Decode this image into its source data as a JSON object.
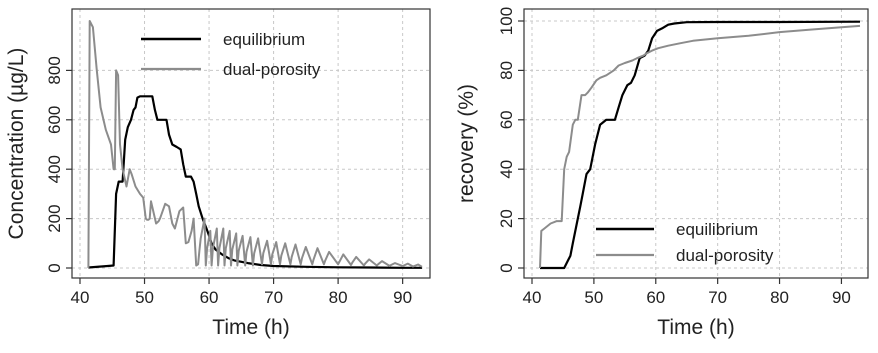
{
  "chart_data": [
    {
      "type": "line",
      "xlabel": "Time (h)",
      "ylabel": "Concentration (µg/L)",
      "xlim": [
        40,
        93
      ],
      "ylim": [
        0,
        1000
      ],
      "xticks": [
        40,
        50,
        60,
        70,
        80,
        90
      ],
      "yticks": [
        0,
        200,
        400,
        600,
        800
      ],
      "grid": true,
      "legend": "top-right",
      "series": [
        {
          "name": "equilibrium",
          "color": "#000000",
          "x": [
            41.3,
            44.3,
            45.2,
            45.6,
            46.0,
            46.6,
            47.0,
            47.4,
            47.9,
            48.3,
            48.6,
            48.9,
            49.3,
            51.2,
            51.6,
            52.0,
            52.8,
            53.4,
            53.8,
            54.3,
            55.0,
            55.6,
            56.0,
            56.4,
            57.2,
            57.6,
            58.0,
            58.4,
            59.0,
            59.6,
            60.0,
            60.4,
            61.0,
            62.0,
            63.0,
            64.0,
            66.0,
            68.0,
            70.0,
            75.0,
            80.0,
            85.0,
            90.0,
            93.0
          ],
          "y": [
            2,
            8,
            10,
            300,
            350,
            350,
            520,
            570,
            600,
            640,
            650,
            690,
            695,
            695,
            640,
            600,
            600,
            600,
            540,
            500,
            490,
            480,
            420,
            370,
            370,
            350,
            300,
            250,
            200,
            160,
            130,
            100,
            75,
            55,
            40,
            30,
            20,
            12,
            8,
            5,
            3,
            2,
            1,
            1
          ]
        },
        {
          "name": "dual-porosity",
          "color": "#8c8c8c",
          "x": [
            41.3,
            41.5,
            42.0,
            42.6,
            43.2,
            44.0,
            44.8,
            45.2,
            45.4,
            45.6,
            45.9,
            46.2,
            46.6,
            47.2,
            47.7,
            48.0,
            48.6,
            49.3,
            49.8,
            50.2,
            50.4,
            50.6,
            50.8,
            51.0,
            51.8,
            52.2,
            52.4,
            53.2,
            53.8,
            54.3,
            54.5,
            54.7,
            55.4,
            56.0,
            56.4,
            56.8,
            57.3,
            57.6,
            58.0,
            58.3,
            58.5,
            58.7,
            59.3,
            59.5,
            59.7,
            60.2,
            60.4,
            60.6,
            61.2,
            61.4,
            61.6,
            62.2,
            62.4,
            62.6,
            63.2,
            63.4,
            63.6,
            64.2,
            64.4,
            64.6,
            65.2,
            65.6,
            65.8,
            66.4,
            66.8,
            67.0,
            67.6,
            68.2,
            68.4,
            69.0,
            69.6,
            69.8,
            70.4,
            71.0,
            71.2,
            71.8,
            72.6,
            72.8,
            73.4,
            74.2,
            74.4,
            75.0,
            76.0,
            76.2,
            76.8,
            77.8,
            78.0,
            78.6,
            80.0,
            80.2,
            80.8,
            82.0,
            82.2,
            82.8,
            84.0,
            84.2,
            84.8,
            86.0,
            86.2,
            86.8,
            88.0,
            88.2,
            88.8,
            90.0,
            90.2,
            90.8,
            91.6,
            91.8,
            92.4,
            93.0
          ],
          "y": [
            0,
            1000,
            975,
            800,
            650,
            560,
            500,
            400,
            400,
            800,
            780,
            500,
            400,
            330,
            400,
            380,
            330,
            300,
            285,
            200,
            195,
            195,
            200,
            270,
            180,
            190,
            200,
            260,
            250,
            180,
            170,
            160,
            230,
            245,
            100,
            105,
            150,
            200,
            10,
            15,
            70,
            120,
            200,
            10,
            80,
            150,
            10,
            80,
            160,
            10,
            80,
            160,
            10,
            80,
            150,
            10,
            75,
            140,
            10,
            70,
            130,
            10,
            65,
            125,
            10,
            60,
            120,
            15,
            60,
            110,
            15,
            55,
            105,
            15,
            50,
            100,
            15,
            45,
            95,
            15,
            40,
            85,
            15,
            35,
            80,
            15,
            30,
            65,
            15,
            25,
            55,
            12,
            22,
            45,
            10,
            18,
            35,
            10,
            15,
            28,
            8,
            12,
            20,
            8,
            10,
            18,
            6,
            8,
            14,
            5
          ]
        }
      ]
    },
    {
      "type": "line",
      "xlabel": "Time (h)",
      "ylabel": "recovery (%)",
      "xlim": [
        40,
        93
      ],
      "ylim": [
        0,
        100
      ],
      "xticks": [
        40,
        50,
        60,
        70,
        80,
        90
      ],
      "yticks": [
        0,
        20,
        40,
        60,
        80,
        100
      ],
      "grid": true,
      "legend": "bottom-right",
      "series": [
        {
          "name": "equilibrium",
          "color": "#000000",
          "x": [
            41.3,
            45.2,
            45.8,
            46.2,
            46.6,
            47.4,
            47.8,
            48.2,
            48.8,
            49.4,
            50.2,
            51.0,
            52.0,
            53.4,
            54.0,
            54.6,
            55.4,
            56.0,
            56.6,
            57.4,
            58.2,
            58.8,
            59.4,
            60.2,
            61.0,
            62.0,
            63.0,
            65.0,
            70.0,
            80.0,
            93.0
          ],
          "y": [
            0,
            0,
            3,
            5,
            10,
            20,
            25,
            30,
            38,
            40,
            50,
            58,
            60,
            60,
            65,
            70,
            74,
            75,
            78,
            85,
            86,
            88,
            93,
            96,
            97,
            98.5,
            99,
            99.5,
            99.6,
            99.6,
            99.7
          ]
        },
        {
          "name": "dual-porosity",
          "color": "#8c8c8c",
          "x": [
            41.3,
            41.5,
            42.0,
            43.0,
            44.0,
            44.8,
            45.2,
            45.6,
            46.0,
            46.6,
            47.0,
            47.4,
            48.0,
            48.6,
            49.0,
            49.6,
            50.4,
            51.0,
            52.0,
            53.2,
            54.0,
            55.0,
            56.2,
            57.0,
            58.0,
            58.6,
            59.4,
            60.4,
            62.0,
            64.0,
            66.0,
            70.0,
            75.0,
            80.0,
            85.0,
            90.0,
            93.0
          ],
          "y": [
            0,
            15,
            16,
            18,
            19,
            19,
            40,
            45,
            47,
            58,
            60,
            60,
            70,
            70,
            71,
            73,
            76,
            77,
            78,
            80,
            82,
            83,
            84,
            85,
            86,
            87,
            88,
            89,
            90,
            91,
            92,
            93,
            94,
            95.5,
            96.5,
            97.5,
            98
          ]
        }
      ]
    }
  ]
}
